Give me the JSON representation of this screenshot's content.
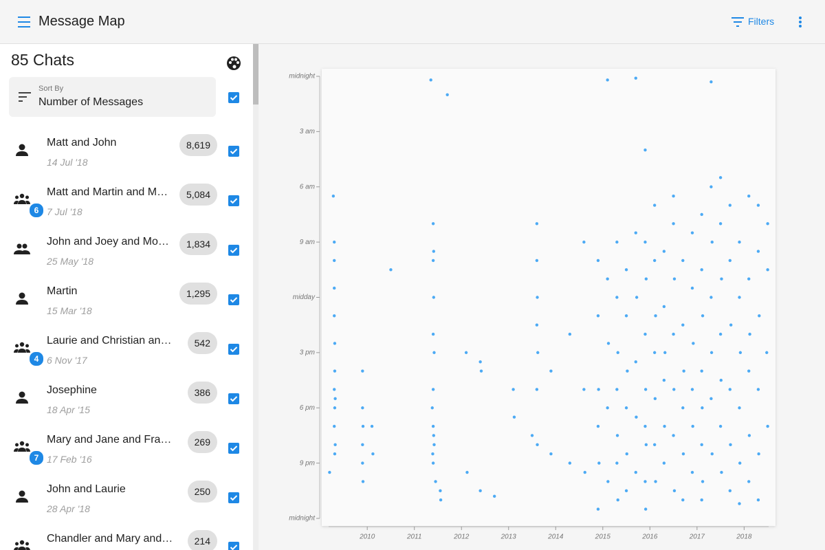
{
  "header": {
    "title": "Message Map",
    "filters": "Filters"
  },
  "sidebar": {
    "count_title": "85 Chats",
    "sort_label": "Sort By",
    "sort_value": "Number of Messages",
    "chats": [
      {
        "name": "Matt and John",
        "date": "14 Jul '18",
        "count": "8,619",
        "icon": "person"
      },
      {
        "name": "Matt and Martin and M…",
        "date": "7 Jul '18",
        "count": "5,084",
        "icon": "groups",
        "badge": "6"
      },
      {
        "name": "John and Joey and Mo…",
        "date": "25 May '18",
        "count": "1,834",
        "icon": "group"
      },
      {
        "name": "Martin",
        "date": "15 Mar '18",
        "count": "1,295",
        "icon": "person"
      },
      {
        "name": "Laurie and Christian an…",
        "date": "6 Nov '17",
        "count": "542",
        "icon": "groups",
        "badge": "4"
      },
      {
        "name": "Josephine",
        "date": "18 Apr '15",
        "count": "386",
        "icon": "person"
      },
      {
        "name": "Mary and Jane and Fra…",
        "date": "17 Feb '16",
        "count": "269",
        "icon": "groups",
        "badge": "7"
      },
      {
        "name": "John and Laurie",
        "date": "28 Apr '18",
        "count": "250",
        "icon": "person"
      },
      {
        "name": "Chandler and Mary and…",
        "count": "214",
        "icon": "groups"
      }
    ]
  },
  "chart_data": {
    "type": "scatter",
    "color": "#2196f3",
    "xlim": [
      2009.18,
      2018.52
    ],
    "xticks": [
      2010,
      2011,
      2012,
      2013,
      2014,
      2015,
      2016,
      2017,
      2018
    ],
    "ylim": [
      0,
      24
    ],
    "yticks": [
      {
        "value": 0,
        "label": "midnight"
      },
      {
        "value": 3,
        "label": "3 am"
      },
      {
        "value": 6,
        "label": "6 am"
      },
      {
        "value": 9,
        "label": "9 am"
      },
      {
        "value": 12,
        "label": "midday"
      },
      {
        "value": 15,
        "label": "3 pm"
      },
      {
        "value": 18,
        "label": "6 pm"
      },
      {
        "value": 21,
        "label": "9 pm"
      },
      {
        "value": 24,
        "label": "midnight"
      }
    ],
    "points": [
      [
        2009.3,
        9
      ],
      [
        2009.3,
        10
      ],
      [
        2009.3,
        11.5
      ],
      [
        2009.3,
        13
      ],
      [
        2009.31,
        14.5
      ],
      [
        2009.31,
        16
      ],
      [
        2009.3,
        17
      ],
      [
        2009.32,
        17.5
      ],
      [
        2009.31,
        18
      ],
      [
        2009.3,
        19
      ],
      [
        2009.32,
        20
      ],
      [
        2009.31,
        20.5
      ],
      [
        2009.28,
        6.5
      ],
      [
        2009.2,
        21.5
      ],
      [
        2009.9,
        16
      ],
      [
        2009.9,
        18
      ],
      [
        2009.91,
        19
      ],
      [
        2009.9,
        20
      ],
      [
        2009.9,
        21
      ],
      [
        2009.91,
        22
      ],
      [
        2010.1,
        19
      ],
      [
        2010.12,
        20.5
      ],
      [
        2010.5,
        10.5
      ],
      [
        2011.4,
        8
      ],
      [
        2011.41,
        9.5
      ],
      [
        2011.4,
        10
      ],
      [
        2011.41,
        12
      ],
      [
        2011.4,
        14
      ],
      [
        2011.42,
        15
      ],
      [
        2011.4,
        17
      ],
      [
        2011.38,
        18
      ],
      [
        2011.4,
        19
      ],
      [
        2011.41,
        19.5
      ],
      [
        2011.42,
        20
      ],
      [
        2011.39,
        20.5
      ],
      [
        2011.4,
        21
      ],
      [
        2011.45,
        22
      ],
      [
        2011.55,
        22.5
      ],
      [
        2011.56,
        23
      ],
      [
        2011.7,
        1
      ],
      [
        2011.35,
        0.2
      ],
      [
        2012.1,
        15
      ],
      [
        2012.12,
        21.5
      ],
      [
        2012.4,
        15.5
      ],
      [
        2012.42,
        16
      ],
      [
        2012.4,
        22.5
      ],
      [
        2012.7,
        22.8
      ],
      [
        2013.1,
        17
      ],
      [
        2013.12,
        18.5
      ],
      [
        2013.5,
        19.5
      ],
      [
        2013.6,
        8
      ],
      [
        2013.6,
        10
      ],
      [
        2013.61,
        12
      ],
      [
        2013.6,
        13.5
      ],
      [
        2013.62,
        15
      ],
      [
        2013.6,
        17
      ],
      [
        2013.61,
        20
      ],
      [
        2013.9,
        16
      ],
      [
        2013.9,
        20.5
      ],
      [
        2014.3,
        14
      ],
      [
        2014.3,
        21
      ],
      [
        2014.6,
        9
      ],
      [
        2014.6,
        17
      ],
      [
        2014.62,
        21.5
      ],
      [
        2014.9,
        10
      ],
      [
        2014.9,
        13
      ],
      [
        2014.91,
        17
      ],
      [
        2014.9,
        19
      ],
      [
        2014.92,
        21
      ],
      [
        2014.9,
        23.5
      ],
      [
        2015.1,
        0.2
      ],
      [
        2015.1,
        11
      ],
      [
        2015.12,
        14.5
      ],
      [
        2015.1,
        18
      ],
      [
        2015.11,
        22
      ],
      [
        2015.3,
        9
      ],
      [
        2015.3,
        12
      ],
      [
        2015.32,
        15
      ],
      [
        2015.3,
        17
      ],
      [
        2015.31,
        19.5
      ],
      [
        2015.3,
        21
      ],
      [
        2015.32,
        23
      ],
      [
        2015.5,
        10.5
      ],
      [
        2015.5,
        13
      ],
      [
        2015.52,
        16
      ],
      [
        2015.5,
        18
      ],
      [
        2015.51,
        20.5
      ],
      [
        2015.5,
        22.5
      ],
      [
        2015.7,
        0.1
      ],
      [
        2015.7,
        8.5
      ],
      [
        2015.72,
        12
      ],
      [
        2015.7,
        15.5
      ],
      [
        2015.71,
        18.5
      ],
      [
        2015.7,
        21.5
      ],
      [
        2015.9,
        4
      ],
      [
        2015.9,
        9
      ],
      [
        2015.92,
        11
      ],
      [
        2015.9,
        14
      ],
      [
        2015.91,
        17
      ],
      [
        2015.9,
        19
      ],
      [
        2015.92,
        20
      ],
      [
        2015.9,
        22
      ],
      [
        2015.91,
        23.5
      ],
      [
        2016.1,
        7
      ],
      [
        2016.1,
        10
      ],
      [
        2016.12,
        13
      ],
      [
        2016.1,
        15
      ],
      [
        2016.11,
        17.5
      ],
      [
        2016.1,
        20
      ],
      [
        2016.12,
        22
      ],
      [
        2016.3,
        9.5
      ],
      [
        2016.3,
        12.5
      ],
      [
        2016.32,
        15
      ],
      [
        2016.3,
        16.5
      ],
      [
        2016.31,
        19
      ],
      [
        2016.3,
        21
      ],
      [
        2016.5,
        6.5
      ],
      [
        2016.5,
        8
      ],
      [
        2016.52,
        11
      ],
      [
        2016.5,
        14
      ],
      [
        2016.51,
        17
      ],
      [
        2016.5,
        19.5
      ],
      [
        2016.52,
        22.5
      ],
      [
        2016.7,
        10
      ],
      [
        2016.7,
        13.5
      ],
      [
        2016.72,
        16
      ],
      [
        2016.7,
        18
      ],
      [
        2016.71,
        20.5
      ],
      [
        2016.7,
        23
      ],
      [
        2016.9,
        8.5
      ],
      [
        2016.9,
        11.5
      ],
      [
        2016.92,
        14.5
      ],
      [
        2016.9,
        17
      ],
      [
        2016.91,
        19
      ],
      [
        2016.9,
        21.5
      ],
      [
        2017.1,
        7.5
      ],
      [
        2017.1,
        10.5
      ],
      [
        2017.12,
        13
      ],
      [
        2017.1,
        16
      ],
      [
        2017.11,
        18
      ],
      [
        2017.1,
        20
      ],
      [
        2017.12,
        22
      ],
      [
        2017.1,
        23
      ],
      [
        2017.3,
        0.3
      ],
      [
        2017.3,
        6
      ],
      [
        2017.32,
        9
      ],
      [
        2017.3,
        12
      ],
      [
        2017.31,
        15
      ],
      [
        2017.3,
        17.5
      ],
      [
        2017.32,
        20.5
      ],
      [
        2017.5,
        5.5
      ],
      [
        2017.5,
        8
      ],
      [
        2017.52,
        11
      ],
      [
        2017.5,
        14
      ],
      [
        2017.51,
        16.5
      ],
      [
        2017.5,
        19
      ],
      [
        2017.52,
        21.5
      ],
      [
        2017.7,
        7
      ],
      [
        2017.7,
        10
      ],
      [
        2017.72,
        13.5
      ],
      [
        2017.7,
        17
      ],
      [
        2017.71,
        20
      ],
      [
        2017.7,
        22.5
      ],
      [
        2017.9,
        9
      ],
      [
        2017.9,
        12
      ],
      [
        2017.92,
        15
      ],
      [
        2017.9,
        18
      ],
      [
        2017.91,
        21
      ],
      [
        2017.9,
        23.2
      ],
      [
        2018.1,
        6.5
      ],
      [
        2018.1,
        11
      ],
      [
        2018.12,
        14
      ],
      [
        2018.1,
        16
      ],
      [
        2018.11,
        19.5
      ],
      [
        2018.1,
        22
      ],
      [
        2018.3,
        7
      ],
      [
        2018.3,
        9.5
      ],
      [
        2018.32,
        13
      ],
      [
        2018.3,
        17
      ],
      [
        2018.31,
        20.5
      ],
      [
        2018.3,
        23
      ],
      [
        2018.5,
        8
      ],
      [
        2018.5,
        10.5
      ],
      [
        2018.48,
        15
      ],
      [
        2018.5,
        19
      ]
    ]
  }
}
